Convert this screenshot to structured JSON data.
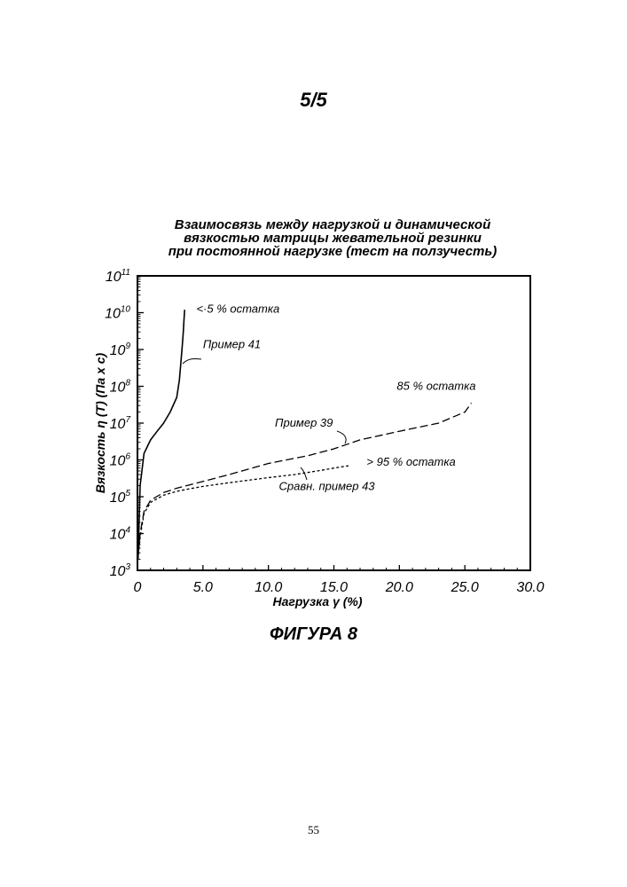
{
  "header": {
    "page_label": "5/5"
  },
  "figure": {
    "caption": "ФИГУРА 8"
  },
  "footer": {
    "page_number": "55"
  },
  "chart_data": {
    "type": "line",
    "title_lines": [
      "Взаимосвязь между нагрузкой и  динамической",
      "вязкостью матрицы жевательной резинки",
      "при постоянной нагрузке  (тест на ползучесть)"
    ],
    "xlabel": "Нагрузка γ (%)",
    "ylabel": "Вязкость η (T) (Па x с)",
    "xlim": [
      0,
      30
    ],
    "ylim": [
      1000,
      100000000000
    ],
    "yscale": "log",
    "x_ticks": [
      {
        "value": 0,
        "label": "0"
      },
      {
        "value": 5,
        "label": "5.0"
      },
      {
        "value": 10,
        "label": "10.0"
      },
      {
        "value": 15,
        "label": "15.0"
      },
      {
        "value": 20,
        "label": "20.0"
      },
      {
        "value": 25,
        "label": "25.0"
      },
      {
        "value": 30,
        "label": "30.0"
      }
    ],
    "y_ticks": [
      {
        "exp": 3,
        "base": "10",
        "sup": "3"
      },
      {
        "exp": 4,
        "base": "10",
        "sup": "4"
      },
      {
        "exp": 5,
        "base": "10",
        "sup": "5"
      },
      {
        "exp": 6,
        "base": "10",
        "sup": "6"
      },
      {
        "exp": 7,
        "base": "10",
        "sup": "7"
      },
      {
        "exp": 8,
        "base": "10",
        "sup": "8"
      },
      {
        "exp": 9,
        "base": "10",
        "sup": "9"
      },
      {
        "exp": 10,
        "base": "10",
        "sup": "10"
      },
      {
        "exp": 11,
        "base": "10",
        "sup": "11"
      }
    ],
    "grid": false,
    "series": [
      {
        "name": "Пример 41",
        "style": "solid",
        "x": [
          0.05,
          0.2,
          0.5,
          1.0,
          1.5,
          2.0,
          2.5,
          3.0,
          3.2,
          3.4,
          3.5,
          3.55,
          3.6
        ],
        "y": [
          2000,
          200000,
          1500000,
          3500000,
          6000000,
          10000000,
          20000000,
          50000000,
          150000000,
          1000000000,
          3000000000,
          6000000000,
          12000000000
        ]
      },
      {
        "name": "Пример 39",
        "style": "long-dash",
        "x": [
          0,
          0.2,
          0.5,
          1,
          2,
          3,
          4,
          5,
          7,
          10,
          13,
          15,
          17,
          20,
          23,
          25,
          25.5
        ],
        "y": [
          1500,
          10000,
          40000,
          80000,
          130000,
          170000,
          210000,
          260000,
          400000,
          800000,
          1300000,
          2000000,
          3500000,
          6000000,
          10000000,
          20000000,
          35000000
        ]
      },
      {
        "name": "Сравн. пример 43",
        "style": "short-dash",
        "x": [
          0,
          0.2,
          0.5,
          1,
          2,
          3,
          4,
          5,
          7,
          10,
          12,
          14,
          15,
          16.2
        ],
        "y": [
          1500,
          8000,
          35000,
          70000,
          110000,
          140000,
          165000,
          190000,
          240000,
          330000,
          400000,
          520000,
          600000,
          700000
        ]
      }
    ],
    "annotations": [
      {
        "text": "<·5 % остатка",
        "x": 4.5,
        "y": 10000000000
      },
      {
        "text": "Пример 41",
        "x": 5.0,
        "y": 1100000000
      },
      {
        "text": "85 % остатка",
        "x": 19.8,
        "y": 80000000
      },
      {
        "text": "Пример 39",
        "x": 10.5,
        "y": 8000000
      },
      {
        "text": "> 95 % остатка",
        "x": 17.5,
        "y": 700000
      },
      {
        "text": "Сравн. пример 43",
        "x": 10.8,
        "y": 150000
      }
    ]
  }
}
